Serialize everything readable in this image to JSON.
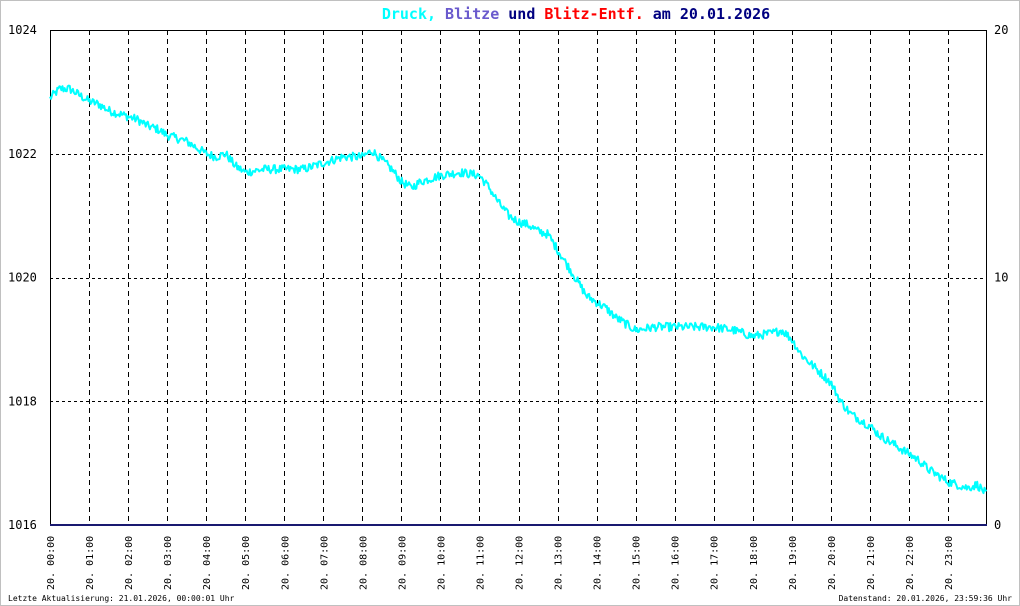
{
  "chart_data": {
    "type": "line",
    "title_parts": [
      {
        "text": "Druck,",
        "color": "#00ffff"
      },
      {
        "text": "Blitze",
        "color": "#6a5acd"
      },
      {
        "text": "und",
        "color": "#000080"
      },
      {
        "text": "Blitz-Entf.",
        "color": "#ff0000"
      },
      {
        "text": "am 20.01.2026",
        "color": "#000080"
      }
    ],
    "y_left": {
      "min": 1016,
      "max": 1024,
      "ticks": [
        "1016",
        "1018",
        "1020",
        "1022",
        "1024"
      ],
      "color": "#000000"
    },
    "y_right": {
      "min": 0,
      "max": 20,
      "ticks": [
        "0",
        "10",
        "20"
      ],
      "color": "#ff0000"
    },
    "x_ticks": [
      "20. 00:00",
      "20. 01:00",
      "20. 02:00",
      "20. 03:00",
      "20. 04:00",
      "20. 05:00",
      "20. 06:00",
      "20. 07:00",
      "20. 08:00",
      "20. 09:00",
      "20. 10:00",
      "20. 11:00",
      "20. 12:00",
      "20. 13:00",
      "20. 14:00",
      "20. 15:00",
      "20. 16:00",
      "20. 17:00",
      "20. 18:00",
      "20. 19:00",
      "20. 20:00",
      "20. 21:00",
      "20. 22:00",
      "20. 23:00"
    ],
    "grid": true,
    "series": [
      {
        "color": "#00ffff",
        "x_hours": [
          0,
          0.25,
          0.5,
          0.75,
          1,
          1.25,
          1.5,
          1.75,
          2,
          2.25,
          2.5,
          2.75,
          3,
          3.25,
          3.5,
          3.75,
          4,
          4.25,
          4.5,
          4.75,
          5,
          5.5,
          6,
          6.5,
          7,
          7.25,
          7.5,
          7.75,
          8,
          8.25,
          8.5,
          8.75,
          9,
          9.25,
          9.5,
          9.75,
          10,
          10.5,
          11,
          11.25,
          11.5,
          11.75,
          12,
          12.25,
          12.5,
          12.75,
          13,
          13.25,
          13.5,
          13.75,
          14,
          14.25,
          14.5,
          14.75,
          15,
          15.5,
          16,
          16.5,
          17,
          17.5,
          18,
          18.5,
          18.75,
          19,
          19.25,
          19.5,
          19.75,
          20,
          20.25,
          20.5,
          20.75,
          21,
          21.25,
          21.5,
          21.75,
          22,
          22.25,
          22.5,
          22.75,
          23,
          23.25,
          23.5,
          23.75,
          23.99
        ],
        "values": [
          1022.9,
          1023.05,
          1023.05,
          1022.95,
          1022.85,
          1022.8,
          1022.7,
          1022.65,
          1022.6,
          1022.55,
          1022.45,
          1022.4,
          1022.3,
          1022.25,
          1022.2,
          1022.1,
          1022.0,
          1021.95,
          1022.0,
          1021.8,
          1021.7,
          1021.75,
          1021.75,
          1021.75,
          1021.85,
          1021.9,
          1021.95,
          1021.95,
          1021.95,
          1022.05,
          1021.9,
          1021.75,
          1021.55,
          1021.45,
          1021.55,
          1021.6,
          1021.65,
          1021.7,
          1021.65,
          1021.45,
          1021.2,
          1021.0,
          1020.9,
          1020.85,
          1020.75,
          1020.7,
          1020.45,
          1020.2,
          1019.95,
          1019.7,
          1019.6,
          1019.5,
          1019.35,
          1019.25,
          1019.15,
          1019.2,
          1019.2,
          1019.2,
          1019.2,
          1019.15,
          1019.05,
          1019.1,
          1019.15,
          1019.0,
          1018.75,
          1018.6,
          1018.45,
          1018.3,
          1018.0,
          1017.8,
          1017.7,
          1017.6,
          1017.45,
          1017.35,
          1017.25,
          1017.15,
          1017.05,
          1016.9,
          1016.8,
          1016.7,
          1016.65,
          1016.6,
          1016.65,
          1016.5
        ]
      }
    ],
    "footer_left": "Letzte Aktualisierung: 21.01.2026, 00:00:01 Uhr",
    "footer_right": "Datenstand: 20.01.2026, 23:59:36 Uhr"
  }
}
